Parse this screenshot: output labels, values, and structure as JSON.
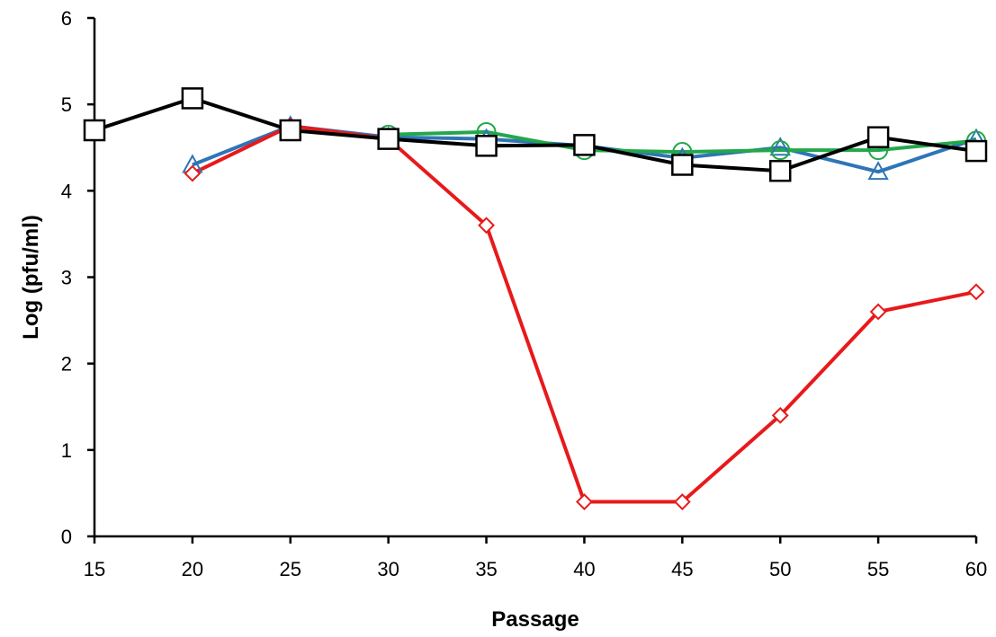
{
  "chart_data": {
    "type": "line",
    "title": "",
    "xlabel": "Passage",
    "ylabel": "Log (pfu/ml)",
    "xlim": [
      15,
      60
    ],
    "ylim": [
      0,
      6
    ],
    "x_ticks": [
      15,
      20,
      25,
      30,
      35,
      40,
      45,
      50,
      55,
      60
    ],
    "y_ticks": [
      0,
      1,
      2,
      3,
      4,
      5,
      6
    ],
    "grid": false,
    "legend": "none",
    "series": [
      {
        "name": "blue-triangle",
        "color": "#2E75B6",
        "marker": "triangle",
        "x": [
          20,
          25,
          30,
          35,
          40,
          45,
          50,
          55,
          60
        ],
        "y": [
          4.3,
          4.75,
          4.62,
          4.6,
          4.52,
          4.38,
          4.5,
          4.22,
          4.6
        ]
      },
      {
        "name": "green-circle",
        "color": "#22A84A",
        "marker": "circle",
        "x": [
          30,
          35,
          40,
          45,
          50,
          55,
          60
        ],
        "y": [
          4.65,
          4.68,
          4.47,
          4.45,
          4.47,
          4.47,
          4.58
        ]
      },
      {
        "name": "red-diamond",
        "color": "#E8191B",
        "marker": "diamond",
        "x": [
          20,
          25,
          30,
          35,
          40,
          45,
          50,
          55,
          60
        ],
        "y": [
          4.2,
          4.75,
          4.6,
          3.6,
          0.4,
          0.4,
          1.4,
          2.6,
          2.83
        ]
      },
      {
        "name": "black-square",
        "color": "#000000",
        "marker": "square",
        "x": [
          15,
          20,
          25,
          30,
          35,
          40,
          45,
          50,
          55,
          60
        ],
        "y": [
          4.7,
          5.07,
          4.7,
          4.6,
          4.52,
          4.53,
          4.3,
          4.23,
          4.62,
          4.46
        ]
      }
    ]
  }
}
